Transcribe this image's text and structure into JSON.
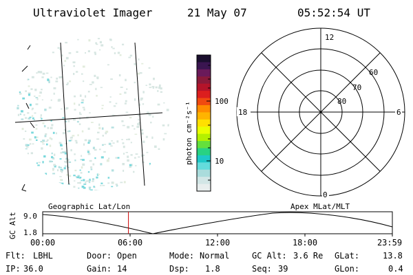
{
  "header": {
    "title": "Ultraviolet Imager",
    "date": "21 May 07",
    "time": "05:52:54 UT"
  },
  "colorbar": {
    "unit_label": "photon cm⁻²s⁻¹",
    "ticks": [
      "100",
      "10"
    ],
    "colors": [
      "#1a0f2e",
      "#3a1550",
      "#6a1a5a",
      "#8a1a3a",
      "#b4142a",
      "#dc1e1e",
      "#f04a10",
      "#ff8c00",
      "#ffb400",
      "#ffe000",
      "#eaff00",
      "#b4f000",
      "#64e03c",
      "#28d282",
      "#1ec8c8",
      "#64dcdc",
      "#aadcdc",
      "#d2e6e6",
      "#e8eeee"
    ]
  },
  "polar_plot": {
    "mlt_labels": {
      "top": "12",
      "left": "18",
      "right": "6",
      "bottom": "0"
    },
    "lat_labels": [
      "60",
      "70",
      "80"
    ]
  },
  "timeline": {
    "y_axis_label": "GC Alt",
    "y_max": "9.0",
    "y_min": "1.8",
    "left_title": "Geographic Lat/Lon",
    "right_title": "Apex MLat/MLT",
    "x_ticks": [
      "00:00",
      "06:00",
      "12:00",
      "18:00",
      "23:59"
    ],
    "current_time_fraction": 0.2452,
    "marker_color": "#cc0000"
  },
  "footer": {
    "row1": [
      {
        "key": "Flt:",
        "value": "LBHL"
      },
      {
        "key": "Door:",
        "value": "Open"
      },
      {
        "key": "Mode:",
        "value": "Normal"
      },
      {
        "key": "GC Alt:",
        "value": "3.6 Re"
      },
      {
        "key": "GLat:",
        "value": "13.8"
      }
    ],
    "row2": [
      {
        "key": "IP:",
        "value": "36.0"
      },
      {
        "key": "Gain:",
        "value": "14"
      },
      {
        "key": "Dsp:",
        "value": "1.8"
      },
      {
        "key": "Seq:",
        "value": "39"
      },
      {
        "key": "GLon:",
        "value": "0.4"
      }
    ]
  }
}
